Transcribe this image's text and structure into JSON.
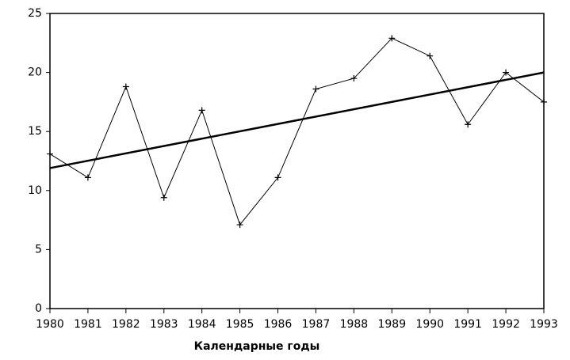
{
  "chart_data": {
    "type": "line",
    "xlabel": "Календарные годы",
    "x": [
      1980,
      1981,
      1982,
      1983,
      1984,
      1985,
      1986,
      1987,
      1988,
      1989,
      1990,
      1991,
      1992,
      1993
    ],
    "series": [
      {
        "color": "#000000",
        "values": [
          13.1,
          11.1,
          18.8,
          9.4,
          16.8,
          7.1,
          11.1,
          18.6,
          19.5,
          22.9,
          21.4,
          15.6,
          20.0,
          17.5
        ]
      }
    ],
    "trend": {
      "x": [
        1980,
        1993
      ],
      "values": [
        11.9,
        20.0
      ],
      "color": "#000000"
    },
    "xlim": [
      1980,
      1993
    ],
    "xticks": [
      1980,
      1981,
      1982,
      1983,
      1984,
      1985,
      1986,
      1987,
      1988,
      1989,
      1990,
      1991,
      1992,
      1993
    ],
    "ylim": [
      0,
      25
    ],
    "yticks": [
      0,
      5,
      10,
      15,
      20,
      25
    ],
    "grid": false
  }
}
